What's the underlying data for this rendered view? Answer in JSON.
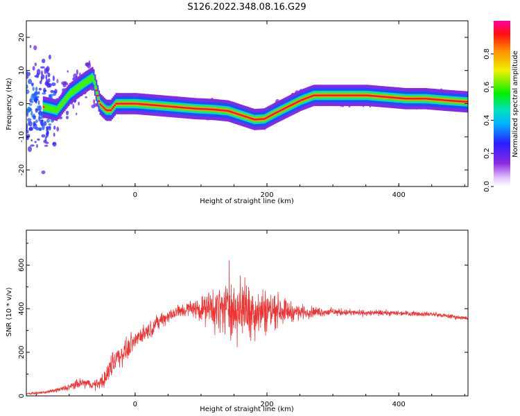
{
  "title": "S126.2022.348.08.16.G29",
  "chart_data": [
    {
      "type": "heatmap",
      "xlabel": "Height of straight line (km)",
      "ylabel": "Frequency (Hz)",
      "xlim": [
        -165,
        505
      ],
      "ylim": [
        -25,
        25
      ],
      "xticks": [
        "0",
        "200",
        "400"
      ],
      "yticks": [
        "-20",
        "-10",
        "0",
        "10",
        "20"
      ],
      "colorbar": {
        "label": "Normalized spectral amplitude",
        "range": [
          0.0,
          1.0
        ],
        "ticks": [
          "0.0",
          "0.2",
          "0.4",
          "0.6",
          "0.8"
        ],
        "colormap": "rainbow (purple-blue-cyan-green-yellow-orange-red-magenta)"
      },
      "ridge": {
        "height_km": [
          -165,
          -140,
          -120,
          -100,
          -80,
          -65,
          -55,
          -45,
          -38,
          -30,
          0,
          30,
          60,
          90,
          120,
          140,
          160,
          180,
          195,
          210,
          230,
          250,
          270,
          290,
          320,
          350,
          380,
          410,
          440,
          470,
          505
        ],
        "frequency_hz": [
          0,
          -1,
          -2,
          3,
          6,
          8,
          0,
          -2,
          -2,
          0,
          0,
          -0.5,
          -1,
          -1.5,
          -1.8,
          -2.2,
          -3.5,
          -4.8,
          -4.6,
          -3,
          -1,
          1,
          2.5,
          2.5,
          2.5,
          2.5,
          2,
          1.5,
          1.5,
          1,
          0.5
        ]
      }
    },
    {
      "type": "line",
      "xlabel": "Height of straight line (km)",
      "ylabel": "SNR (10 * v/v)",
      "xlim": [
        -165,
        505
      ],
      "ylim": [
        0,
        760
      ],
      "xticks": [
        "0",
        "200",
        "400"
      ],
      "yticks": [
        "0",
        "200",
        "400",
        "600"
      ],
      "series_color": "#ee3333",
      "envelope": {
        "height_km": [
          -165,
          -140,
          -120,
          -100,
          -80,
          -60,
          -45,
          -35,
          -25,
          -10,
          0,
          20,
          40,
          60,
          80,
          100,
          120,
          140,
          160,
          180,
          200,
          220,
          240,
          260,
          300,
          350,
          400,
          450,
          505
        ],
        "snr_mean": [
          10,
          15,
          25,
          40,
          60,
          50,
          80,
          150,
          180,
          220,
          260,
          300,
          350,
          380,
          400,
          400,
          400,
          400,
          395,
          390,
          390,
          395,
          385,
          385,
          385,
          380,
          380,
          375,
          355
        ],
        "snr_spread": [
          6,
          8,
          12,
          25,
          35,
          30,
          60,
          90,
          80,
          70,
          60,
          55,
          50,
          50,
          50,
          80,
          150,
          180,
          200,
          180,
          150,
          100,
          60,
          40,
          25,
          20,
          18,
          15,
          15
        ]
      }
    }
  ]
}
